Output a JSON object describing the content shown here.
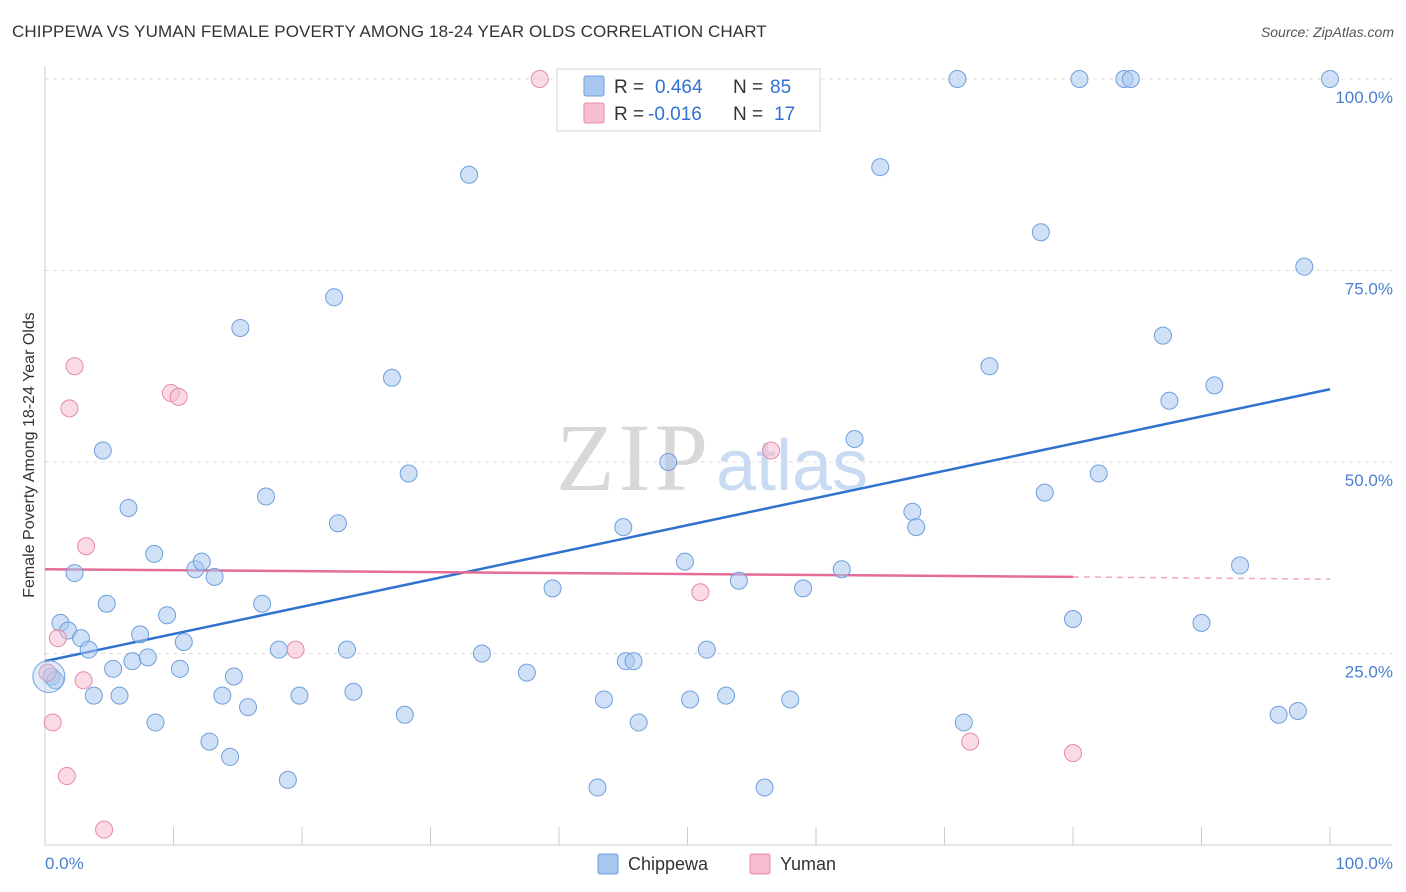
{
  "chart_data": {
    "type": "scatter",
    "title": "CHIPPEWA VS YUMAN FEMALE POVERTY AMONG 18-24 YEAR OLDS CORRELATION CHART",
    "source": "Source: ZipAtlas.com",
    "xlabel": "",
    "ylabel": "Female Poverty Among 18-24 Year Olds",
    "xlim": [
      0,
      100
    ],
    "ylim": [
      0,
      100
    ],
    "x_tick_labels": [
      "0.0%",
      "100.0%"
    ],
    "y_ticks": [
      25,
      50,
      75,
      100
    ],
    "y_tick_labels": [
      "25.0%",
      "50.0%",
      "75.0%",
      "100.0%"
    ],
    "grid": "horizontal dashed",
    "watermark": {
      "zip": "ZIP",
      "atlas": "atlas"
    },
    "legend": {
      "placement": "top-center",
      "r_label": "R =",
      "n_label": "N =",
      "entries": [
        {
          "r": "0.464",
          "n": "85"
        },
        {
          "r": "-0.016",
          "n": "17"
        }
      ]
    },
    "series": [
      {
        "name": "Chippewa",
        "color": "#a9c8f0",
        "stroke": "#6f9fdc",
        "trend_color": "#2f72d0",
        "trend": {
          "x0": 0,
          "y0": 24,
          "x1": 100,
          "y1": 59.5
        },
        "points": [
          [
            0.5,
            22.0
          ],
          [
            0.8,
            21.5
          ],
          [
            1.2,
            29.0
          ],
          [
            1.8,
            28.0
          ],
          [
            2.3,
            35.5
          ],
          [
            2.8,
            27.0
          ],
          [
            3.4,
            25.5
          ],
          [
            3.8,
            19.5
          ],
          [
            4.5,
            51.5
          ],
          [
            4.8,
            31.5
          ],
          [
            5.3,
            23.0
          ],
          [
            5.8,
            19.5
          ],
          [
            6.5,
            44.0
          ],
          [
            6.8,
            24.0
          ],
          [
            7.4,
            27.5
          ],
          [
            8.0,
            24.5
          ],
          [
            8.5,
            38.0
          ],
          [
            8.6,
            16.0
          ],
          [
            9.5,
            30.0
          ],
          [
            10.5,
            23.0
          ],
          [
            10.8,
            26.5
          ],
          [
            11.7,
            36.0
          ],
          [
            12.2,
            37.0
          ],
          [
            12.8,
            13.5
          ],
          [
            13.2,
            35.0
          ],
          [
            13.8,
            19.5
          ],
          [
            14.4,
            11.5
          ],
          [
            14.7,
            22.0
          ],
          [
            15.2,
            67.5
          ],
          [
            15.8,
            18.0
          ],
          [
            16.9,
            31.5
          ],
          [
            17.2,
            45.5
          ],
          [
            18.2,
            25.5
          ],
          [
            18.9,
            8.5
          ],
          [
            19.8,
            19.5
          ],
          [
            22.5,
            71.5
          ],
          [
            22.8,
            42.0
          ],
          [
            23.5,
            25.5
          ],
          [
            24.0,
            20.0
          ],
          [
            27.0,
            61.0
          ],
          [
            28.0,
            17.0
          ],
          [
            28.3,
            48.5
          ],
          [
            33.0,
            87.5
          ],
          [
            34.0,
            25.0
          ],
          [
            37.5,
            22.5
          ],
          [
            39.5,
            33.5
          ],
          [
            43.0,
            7.5
          ],
          [
            43.5,
            19.0
          ],
          [
            45.0,
            41.5
          ],
          [
            45.2,
            24.0
          ],
          [
            45.8,
            24.0
          ],
          [
            46.2,
            16.0
          ],
          [
            48.5,
            50.0
          ],
          [
            49.8,
            37.0
          ],
          [
            50.2,
            19.0
          ],
          [
            51.5,
            25.5
          ],
          [
            53.0,
            19.5
          ],
          [
            54.0,
            34.5
          ],
          [
            56.0,
            7.5
          ],
          [
            58.0,
            19.0
          ],
          [
            59.0,
            33.5
          ],
          [
            62.0,
            36.0
          ],
          [
            63.0,
            53.0
          ],
          [
            65.0,
            88.5
          ],
          [
            67.5,
            43.5
          ],
          [
            67.8,
            41.5
          ],
          [
            71.0,
            100
          ],
          [
            71.5,
            16.0
          ],
          [
            73.5,
            62.5
          ],
          [
            77.5,
            80.0
          ],
          [
            77.8,
            46.0
          ],
          [
            80.0,
            29.5
          ],
          [
            80.5,
            100
          ],
          [
            82.0,
            48.5
          ],
          [
            84.0,
            100
          ],
          [
            84.5,
            100
          ],
          [
            87.0,
            66.5
          ],
          [
            87.5,
            58.0
          ],
          [
            90.0,
            29.0
          ],
          [
            91.0,
            60.0
          ],
          [
            93.0,
            36.5
          ],
          [
            96.0,
            17.0
          ],
          [
            97.5,
            17.5
          ],
          [
            98.0,
            75.5
          ],
          [
            100.0,
            100
          ]
        ]
      },
      {
        "name": "Yuman",
        "color": "#f6bed0",
        "stroke": "#e68aa8",
        "trend_color": "#e46c96",
        "trend": {
          "x0": 0,
          "y0": 36.0,
          "x1": 80,
          "y1": 35.0,
          "dash_to_x": 100,
          "dash_to_y": 34.7
        },
        "points": [
          [
            0.2,
            22.5
          ],
          [
            0.6,
            16.0
          ],
          [
            1.0,
            27.0
          ],
          [
            1.7,
            9.0
          ],
          [
            1.9,
            57.0
          ],
          [
            2.3,
            62.5
          ],
          [
            3.0,
            21.5
          ],
          [
            3.2,
            39.0
          ],
          [
            4.6,
            2.0
          ],
          [
            9.8,
            59.0
          ],
          [
            10.4,
            58.5
          ],
          [
            19.5,
            25.5
          ],
          [
            38.5,
            100
          ],
          [
            51.0,
            33.0
          ],
          [
            56.5,
            51.5
          ],
          [
            72.0,
            13.5
          ],
          [
            80.0,
            12.0
          ]
        ]
      }
    ]
  }
}
